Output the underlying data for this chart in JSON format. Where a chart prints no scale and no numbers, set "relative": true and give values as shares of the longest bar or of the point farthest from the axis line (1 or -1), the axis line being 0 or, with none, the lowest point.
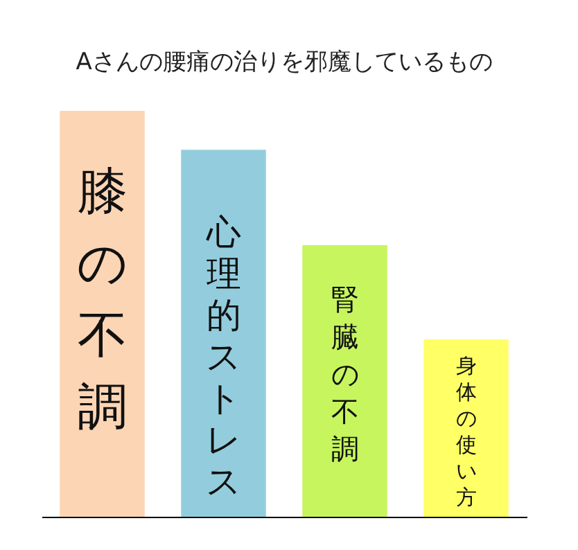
{
  "chart_data": {
    "type": "bar",
    "title": "Aさんの腰痛の治りを邪魔しているもの",
    "relative": true,
    "categories": [
      "膝の不調",
      "心理的ストレス",
      "腎臓の不調",
      "身体の使い方"
    ],
    "values": [
      1,
      0.904,
      0.669,
      0.437
    ],
    "colors": [
      "#fcd5b5",
      "#93cddd",
      "#c6f55e",
      "#ffff66"
    ],
    "legend": false
  }
}
